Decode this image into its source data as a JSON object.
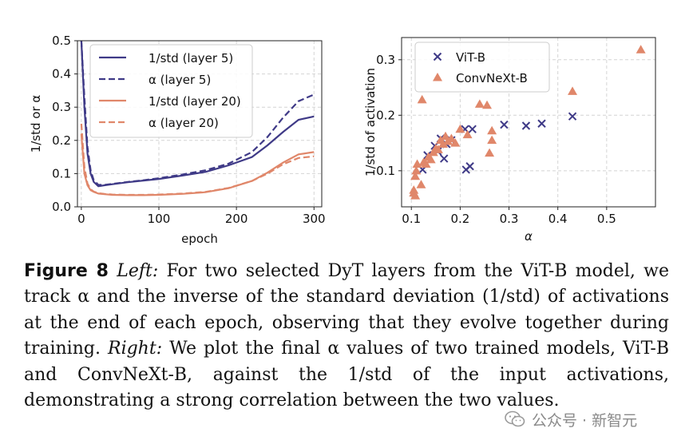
{
  "chart_data": [
    {
      "type": "line",
      "xlabel": "epoch",
      "ylabel": "1/std or α",
      "xlim": [
        -5,
        310
      ],
      "ylim": [
        0.0,
        0.5
      ],
      "xticks": [
        0,
        100,
        200,
        300
      ],
      "yticks": [
        0.0,
        0.1,
        0.2,
        0.3,
        0.4,
        0.5
      ],
      "legend_position": "top-right",
      "grid": true,
      "series": [
        {
          "name": "1/std (layer 5)",
          "color": "#3f3a87",
          "dash": "solid",
          "x": [
            0,
            4,
            8,
            12,
            16,
            22,
            30,
            40,
            60,
            80,
            100,
            130,
            160,
            190,
            220,
            240,
            260,
            280,
            300
          ],
          "y": [
            0.5,
            0.3,
            0.16,
            0.1,
            0.075,
            0.062,
            0.065,
            0.068,
            0.074,
            0.079,
            0.084,
            0.094,
            0.105,
            0.125,
            0.15,
            0.185,
            0.225,
            0.262,
            0.272
          ]
        },
        {
          "name": "α (layer 5)",
          "color": "#3f3a87",
          "dash": "dashed",
          "x": [
            0,
            4,
            8,
            12,
            16,
            22,
            30,
            40,
            60,
            80,
            100,
            130,
            160,
            190,
            220,
            240,
            260,
            280,
            300
          ],
          "y": [
            0.5,
            0.33,
            0.18,
            0.11,
            0.08,
            0.066,
            0.066,
            0.069,
            0.075,
            0.08,
            0.086,
            0.097,
            0.11,
            0.13,
            0.165,
            0.21,
            0.268,
            0.318,
            0.338
          ]
        },
        {
          "name": "1/std (layer 20)",
          "color": "#e0876a",
          "dash": "solid",
          "x": [
            0,
            4,
            8,
            12,
            16,
            22,
            30,
            40,
            60,
            80,
            100,
            130,
            160,
            190,
            220,
            240,
            260,
            280,
            300
          ],
          "y": [
            0.22,
            0.1,
            0.065,
            0.05,
            0.045,
            0.04,
            0.038,
            0.036,
            0.035,
            0.035,
            0.036,
            0.039,
            0.044,
            0.056,
            0.078,
            0.103,
            0.133,
            0.158,
            0.165
          ]
        },
        {
          "name": "α (layer 20)",
          "color": "#e0876a",
          "dash": "dashed",
          "x": [
            0,
            4,
            8,
            12,
            16,
            22,
            30,
            40,
            60,
            80,
            100,
            130,
            160,
            190,
            220,
            240,
            260,
            280,
            300
          ],
          "y": [
            0.25,
            0.12,
            0.07,
            0.053,
            0.046,
            0.041,
            0.039,
            0.037,
            0.036,
            0.036,
            0.037,
            0.04,
            0.045,
            0.057,
            0.078,
            0.1,
            0.128,
            0.147,
            0.152
          ]
        }
      ]
    },
    {
      "type": "scatter",
      "xlabel": "α",
      "ylabel": "1/std of activation",
      "xlim": [
        0.08,
        0.6
      ],
      "ylim": [
        0.035,
        0.34
      ],
      "xticks": [
        0.1,
        0.2,
        0.3,
        0.4,
        0.5
      ],
      "yticks": [
        0.1,
        0.2,
        0.3
      ],
      "legend_position": "top-left",
      "grid": true,
      "series": [
        {
          "name": "ViT-B",
          "color": "#3f3a87",
          "marker": "x",
          "points": [
            [
              0.123,
              0.102
            ],
            [
              0.133,
              0.128
            ],
            [
              0.148,
              0.145
            ],
            [
              0.154,
              0.135
            ],
            [
              0.16,
              0.158
            ],
            [
              0.167,
              0.122
            ],
            [
              0.172,
              0.148
            ],
            [
              0.182,
              0.155
            ],
            [
              0.21,
              0.175
            ],
            [
              0.212,
              0.102
            ],
            [
              0.22,
              0.108
            ],
            [
              0.225,
              0.175
            ],
            [
              0.29,
              0.183
            ],
            [
              0.335,
              0.181
            ],
            [
              0.367,
              0.185
            ],
            [
              0.43,
              0.198
            ]
          ]
        },
        {
          "name": "ConvNeXt-B",
          "color": "#e0876a",
          "marker": "^",
          "points": [
            [
              0.105,
              0.06
            ],
            [
              0.105,
              0.065
            ],
            [
              0.108,
              0.055
            ],
            [
              0.108,
              0.09
            ],
            [
              0.11,
              0.1
            ],
            [
              0.112,
              0.112
            ],
            [
              0.12,
              0.075
            ],
            [
              0.122,
              0.228
            ],
            [
              0.125,
              0.115
            ],
            [
              0.13,
              0.112
            ],
            [
              0.135,
              0.125
            ],
            [
              0.14,
              0.12
            ],
            [
              0.145,
              0.133
            ],
            [
              0.15,
              0.14
            ],
            [
              0.155,
              0.138
            ],
            [
              0.16,
              0.155
            ],
            [
              0.165,
              0.148
            ],
            [
              0.17,
              0.162
            ],
            [
              0.175,
              0.153
            ],
            [
              0.182,
              0.158
            ],
            [
              0.19,
              0.15
            ],
            [
              0.2,
              0.175
            ],
            [
              0.215,
              0.165
            ],
            [
              0.24,
              0.22
            ],
            [
              0.255,
              0.218
            ],
            [
              0.26,
              0.132
            ],
            [
              0.265,
              0.155
            ],
            [
              0.265,
              0.172
            ],
            [
              0.43,
              0.243
            ],
            [
              0.57,
              0.318
            ]
          ]
        }
      ]
    }
  ],
  "caption": {
    "label": "Figure 8",
    "left_word": "Left:",
    "text_a": " For two selected DyT layers from the ViT-B model, we track α and the inverse of the standard deviation (1/std) of activations at the end of each epoch, observing that they evolve together during training. ",
    "right_word": "Right:",
    "text_b": " We plot the final α values of two trained models, ViT-B and ConvNeXt-B, against the 1/std of the input activations, demonstrating a strong correlation between the two values."
  },
  "watermark": {
    "text": "公众号 · 新智元",
    "icon": "wechat-icon"
  }
}
